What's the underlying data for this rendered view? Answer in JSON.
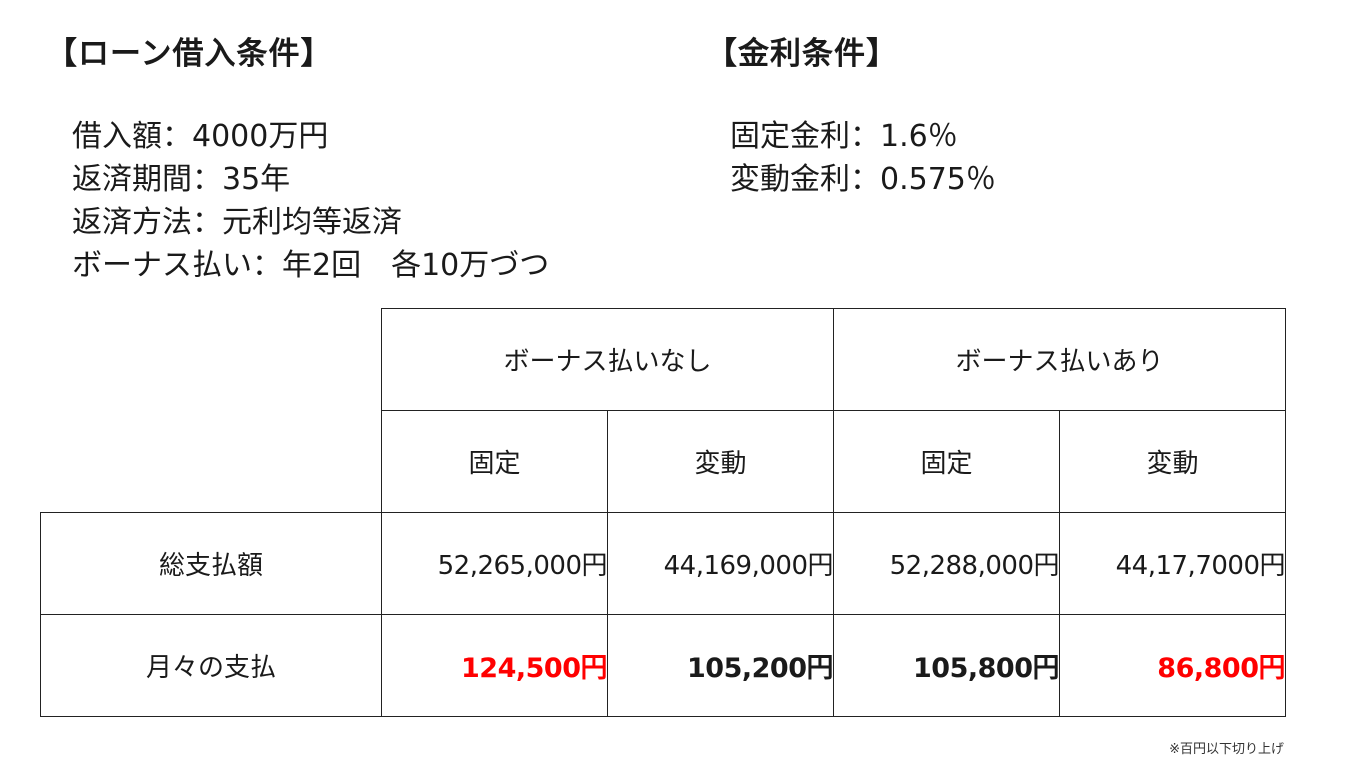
{
  "loan": {
    "heading": "【ローン借入条件】",
    "lines": [
      "借入額：4000万円",
      "返済期間：35年",
      "返済方法：元利均等返済",
      "ボーナス払い：年2回　各10万づつ"
    ]
  },
  "rate": {
    "heading": "【金利条件】",
    "lines": [
      "固定金利：1.6％",
      "変動金利：0.575％"
    ]
  },
  "table": {
    "groups": [
      "ボーナス払いなし",
      "ボーナス払いあり"
    ],
    "subheaders": [
      "固定",
      "変動",
      "固定",
      "変動"
    ],
    "rows": [
      {
        "label": "総支払額",
        "values": [
          "52,265,000円",
          "44,169,000円",
          "52,288,000円",
          "44,17,7000円"
        ]
      },
      {
        "label": "月々の支払",
        "values": [
          "124,500円",
          "105,200円",
          "105,800円",
          "86,800円"
        ]
      }
    ],
    "highlight_color": "#ff0000"
  },
  "footnote": "※百円以下切り上げ"
}
